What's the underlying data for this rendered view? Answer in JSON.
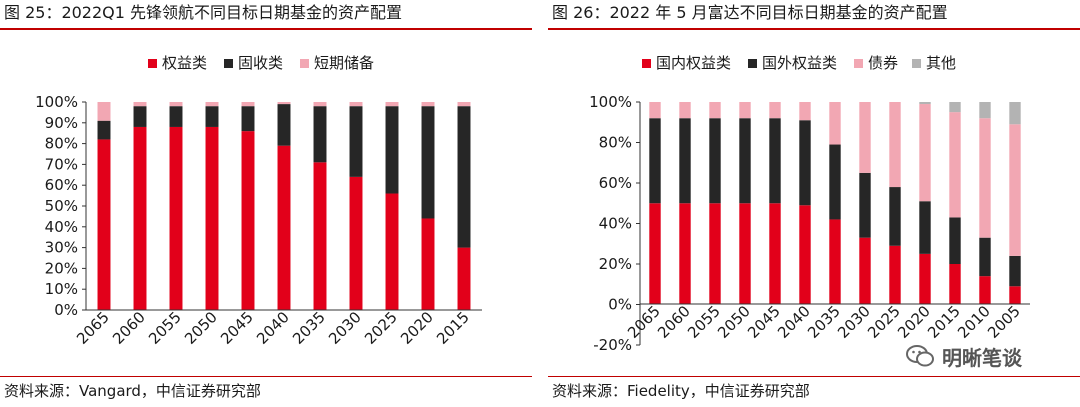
{
  "colors": {
    "red": "#e2001a",
    "black": "#262626",
    "pink": "#f2a7b3",
    "gray": "#b3b3b3"
  },
  "left": {
    "title": "图 25：2022Q1 先锋领航不同目标日期基金的资产配置",
    "source": "资料来源：Vangard，中信证券研究部"
  },
  "right": {
    "title": "图 26：2022 年 5 月富达不同目标日期基金的资产配置",
    "source": "资料来源：Fiedelity，中信证券研究部"
  },
  "watermark": {
    "text": "明晰笔谈",
    "icon": "wechat-icon"
  },
  "chart_data": [
    {
      "type": "bar",
      "stacked": true,
      "title": "图 25：2022Q1 先锋领航不同目标日期基金的资产配置",
      "categories": [
        "2065",
        "2060",
        "2055",
        "2050",
        "2045",
        "2040",
        "2035",
        "2030",
        "2025",
        "2020",
        "2015"
      ],
      "series": [
        {
          "name": "权益类",
          "color": "#e2001a",
          "values": [
            82,
            88,
            88,
            88,
            86,
            79,
            71,
            64,
            56,
            44,
            30
          ]
        },
        {
          "name": "固收类",
          "color": "#262626",
          "values": [
            9,
            10,
            10,
            10,
            12,
            20,
            27,
            34,
            42,
            54,
            68
          ]
        },
        {
          "name": "短期储备",
          "color": "#f2a7b3",
          "values": [
            9,
            2,
            2,
            2,
            2,
            1,
            2,
            2,
            2,
            2,
            2
          ]
        }
      ],
      "ylim": [
        0,
        100
      ],
      "yticks": [
        "0%",
        "10%",
        "20%",
        "30%",
        "40%",
        "50%",
        "60%",
        "70%",
        "80%",
        "90%",
        "100%"
      ],
      "legend_position": "top",
      "grid": false
    },
    {
      "type": "bar",
      "stacked": true,
      "title": "图 26：2022 年 5 月富达不同目标日期基金的资产配置",
      "categories": [
        "2065",
        "2060",
        "2055",
        "2050",
        "2045",
        "2040",
        "2035",
        "2030",
        "2025",
        "2020",
        "2015",
        "2010",
        "2005"
      ],
      "series": [
        {
          "name": "国内权益类",
          "color": "#e2001a",
          "values": [
            50,
            50,
            50,
            50,
            50,
            49,
            42,
            33,
            29,
            25,
            20,
            14,
            9
          ]
        },
        {
          "name": "国外权益类",
          "color": "#262626",
          "values": [
            42,
            42,
            42,
            42,
            42,
            42,
            37,
            32,
            29,
            26,
            23,
            19,
            15
          ]
        },
        {
          "name": "债券",
          "color": "#f2a7b3",
          "values": [
            8,
            8,
            8,
            8,
            8,
            9,
            21,
            35,
            42,
            48,
            52,
            59,
            65
          ]
        },
        {
          "name": "其他",
          "color": "#b3b3b3",
          "values": [
            0,
            0,
            0,
            0,
            0,
            0,
            0,
            0,
            0,
            1,
            5,
            8,
            11
          ]
        }
      ],
      "ylim": [
        -20,
        100
      ],
      "yticks": [
        "-20%",
        "0%",
        "20%",
        "40%",
        "60%",
        "80%",
        "100%"
      ],
      "legend_position": "top",
      "grid": false
    }
  ]
}
